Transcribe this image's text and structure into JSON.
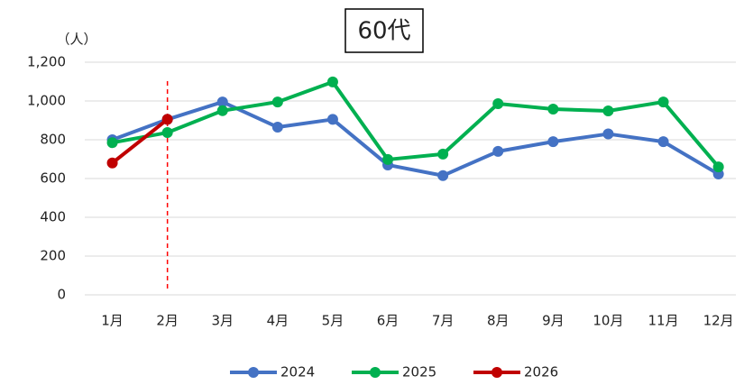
{
  "chart_data": {
    "type": "line",
    "title": "60代",
    "y_label": "（人）",
    "categories": [
      "1月",
      "2月",
      "3月",
      "4月",
      "5月",
      "6月",
      "7月",
      "8月",
      "9月",
      "10月",
      "11月",
      "12月"
    ],
    "series": [
      {
        "name": "2024",
        "color": "#4472c4",
        "values": [
          800,
          905,
          995,
          865,
          905,
          670,
          615,
          740,
          790,
          830,
          790,
          623
        ]
      },
      {
        "name": "2025",
        "color": "#00b050",
        "values": [
          785,
          837,
          950,
          995,
          1098,
          698,
          726,
          986,
          958,
          949,
          995,
          660
        ]
      },
      {
        "name": "2026",
        "color": "#c00000",
        "values": [
          680,
          905,
          null,
          null,
          null,
          null,
          null,
          null,
          null,
          null,
          null,
          null
        ]
      }
    ],
    "ylim": [
      0,
      1200
    ],
    "yticks": [
      0,
      200,
      400,
      600,
      800,
      {
        "value": 1000,
        "label": "1,000"
      },
      {
        "value": 1200,
        "label": "1,200"
      }
    ],
    "grid": true,
    "legend": "bottom"
  }
}
